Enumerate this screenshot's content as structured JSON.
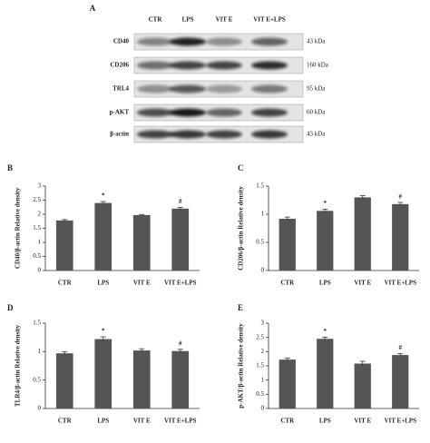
{
  "blot": {
    "label": "A",
    "lanes": [
      "CTR",
      "LPS",
      "VIT E",
      "VIT E+LPS"
    ],
    "rows": [
      {
        "name": "CD40",
        "size": "43 kDa"
      },
      {
        "name": "CD206",
        "size": "160 kDa"
      },
      {
        "name": "TRL4",
        "size": "95 kDa"
      },
      {
        "name": "p-AKT",
        "size": "60 kDa"
      },
      {
        "name": "β-actin",
        "size": "43 kDa"
      }
    ]
  },
  "chart_data": [
    {
      "type": "bar",
      "label": "B",
      "ylabel": "CD40/β-actin Relative density",
      "categories": [
        "CTR",
        "LPS",
        "VIT E",
        "VIT E+LPS"
      ],
      "values": [
        1.78,
        2.4,
        1.97,
        2.2
      ],
      "errors": [
        0.03,
        0.05,
        0.02,
        0.04
      ],
      "markers": [
        null,
        "*",
        null,
        "#"
      ],
      "color": "#555555",
      "ylim": [
        0,
        3
      ],
      "yticks": [
        0,
        0.5,
        1,
        1.5,
        2,
        2.5,
        3
      ]
    },
    {
      "type": "bar",
      "label": "C",
      "ylabel": "CD206/β-actin Relative density",
      "categories": [
        "CTR",
        "LPS",
        "VIT E",
        "VIT E+LPS"
      ],
      "values": [
        0.92,
        1.06,
        1.3,
        1.18
      ],
      "errors": [
        0.03,
        0.03,
        0.03,
        0.03
      ],
      "markers": [
        null,
        "*",
        null,
        "#"
      ],
      "color": "#555555",
      "ylim": [
        0,
        1.5
      ],
      "yticks": [
        0,
        0.5,
        1,
        1.5
      ]
    },
    {
      "type": "bar",
      "label": "D",
      "ylabel": "TLR4/β-actin Relative density",
      "categories": [
        "CTR",
        "LPS",
        "VIT E",
        "VIT E+LPS"
      ],
      "values": [
        0.97,
        1.22,
        1.02,
        1.01
      ],
      "errors": [
        0.03,
        0.04,
        0.03,
        0.03
      ],
      "markers": [
        null,
        "*",
        null,
        "#"
      ],
      "color": "#555555",
      "ylim": [
        0,
        1.5
      ],
      "yticks": [
        0,
        0.5,
        1,
        1.5
      ]
    },
    {
      "type": "bar",
      "label": "E",
      "ylabel": "p-AKT/β-actin Relative density",
      "categories": [
        "CTR",
        "LPS",
        "VIT E",
        "VIT E+LPS"
      ],
      "values": [
        1.72,
        2.45,
        1.58,
        1.88
      ],
      "errors": [
        0.05,
        0.06,
        0.08,
        0.05
      ],
      "markers": [
        null,
        "*",
        null,
        "#"
      ],
      "color": "#555555",
      "ylim": [
        0,
        3
      ],
      "yticks": [
        0,
        0.5,
        1,
        1.5,
        2,
        2.5,
        3
      ]
    }
  ]
}
